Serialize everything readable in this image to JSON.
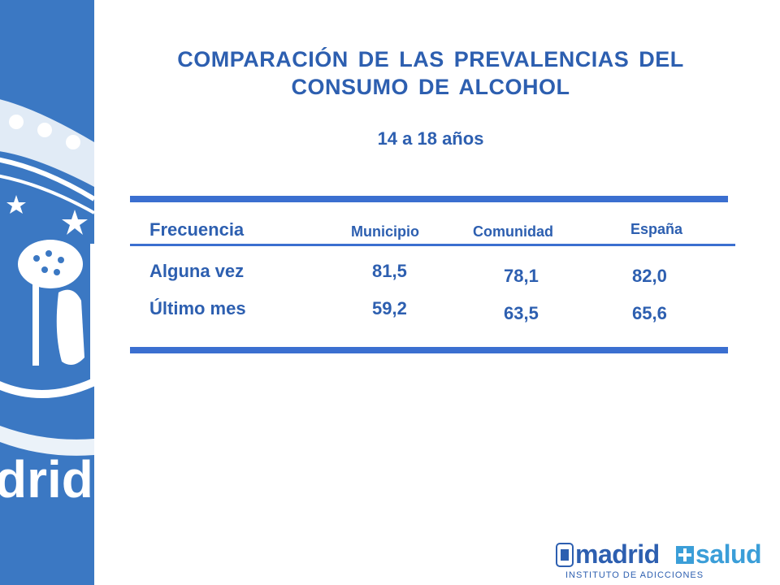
{
  "title_line1": "COMPARACIÓN DE LAS PREVALENCIAS DEL",
  "title_line2": "CONSUMO DE ALCOHOL",
  "subtitle": "14 a 18 años",
  "table": {
    "header_label": "Frecuencia",
    "columns": [
      "Municipio",
      "Comunidad",
      "España"
    ],
    "rows": [
      {
        "label": "Alguna vez",
        "values": [
          "81,5",
          "78,1",
          "82,0"
        ]
      },
      {
        "label": "Último mes",
        "values": [
          "59,2",
          "63,5",
          "65,6"
        ]
      }
    ]
  },
  "side_logo_text": "drid",
  "footer": {
    "word1": "madrid",
    "word2": "salud",
    "sub": "INSTITUTO DE ADICCIONES"
  },
  "colors": {
    "accent": "#2d5fb0",
    "band": "#3b78c3"
  }
}
